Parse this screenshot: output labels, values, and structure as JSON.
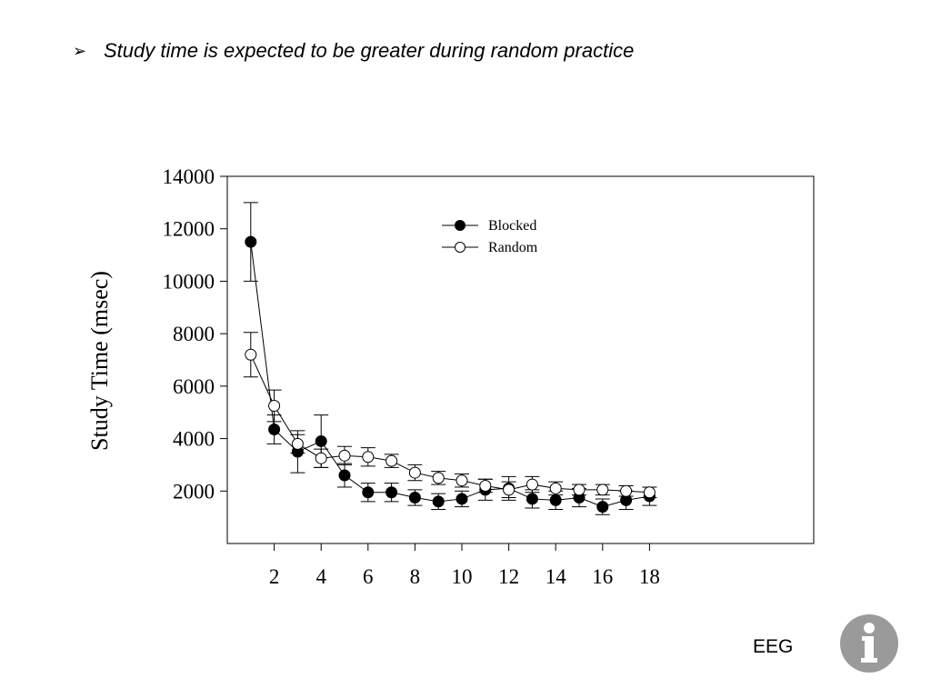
{
  "slide": {
    "bullet_symbol": "➢",
    "bullet_text": "Study time is expected to be greater during random practice",
    "footer": "EEG",
    "logo_icon": "info-icon"
  },
  "chart_data": {
    "type": "line",
    "title": "",
    "xlabel": "",
    "ylabel": "Study Time (msec)",
    "xlim": [
      0,
      25
    ],
    "ylim": [
      0,
      14000
    ],
    "x_ticks": [
      2,
      4,
      6,
      8,
      10,
      12,
      14,
      16,
      18
    ],
    "y_ticks": [
      2000,
      4000,
      6000,
      8000,
      10000,
      12000,
      14000
    ],
    "grid": false,
    "legend_position": "top-center",
    "x": [
      1,
      2,
      3,
      4,
      5,
      6,
      7,
      8,
      9,
      10,
      11,
      12,
      13,
      14,
      15,
      16,
      17,
      18
    ],
    "series": [
      {
        "name": "Blocked",
        "marker": "filled-circle",
        "values": [
          11500,
          4350,
          3500,
          3900,
          2600,
          1950,
          1950,
          1750,
          1600,
          1700,
          2050,
          2100,
          1700,
          1650,
          1750,
          1400,
          1650,
          1800
        ],
        "error": [
          1500,
          550,
          800,
          1000,
          450,
          350,
          350,
          300,
          300,
          300,
          400,
          450,
          350,
          350,
          350,
          300,
          350,
          350
        ]
      },
      {
        "name": "Random",
        "marker": "open-circle",
        "values": [
          7200,
          5250,
          3800,
          3250,
          3350,
          3300,
          3150,
          2700,
          2500,
          2400,
          2200,
          2050,
          2250,
          2100,
          2050,
          2050,
          2000,
          1950
        ],
        "error": [
          850,
          600,
          350,
          350,
          350,
          350,
          250,
          300,
          250,
          250,
          250,
          300,
          300,
          250,
          200,
          200,
          200,
          200
        ]
      }
    ]
  }
}
